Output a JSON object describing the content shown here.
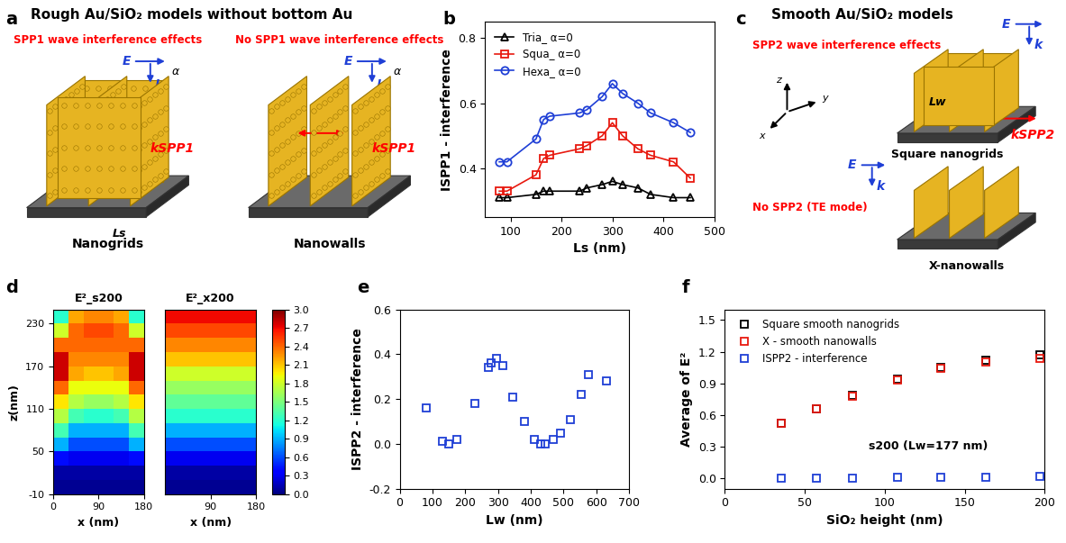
{
  "chart_data": [
    {
      "panel": "b",
      "type": "line",
      "xlabel": "Ls (nm)",
      "ylabel": "ISPP1 - interference",
      "x": [
        78,
        93,
        150,
        165,
        177,
        236,
        250,
        280,
        300,
        320,
        350,
        375,
        420,
        453
      ],
      "series": [
        {
          "name": "Tria_ α=0",
          "color": "#000000",
          "marker": "triangle",
          "line_style": "solid",
          "values": [
            0.31,
            0.31,
            0.32,
            0.33,
            0.33,
            0.33,
            0.34,
            0.35,
            0.36,
            0.35,
            0.34,
            0.32,
            0.31,
            0.31
          ]
        },
        {
          "name": "Squa_ α=0",
          "color": "#e8190f",
          "marker": "square",
          "line_style": "solid",
          "values": [
            0.33,
            0.33,
            0.38,
            0.43,
            0.44,
            0.46,
            0.47,
            0.5,
            0.54,
            0.5,
            0.46,
            0.44,
            0.42,
            0.37
          ]
        },
        {
          "name": "Hexa_ α=0",
          "color": "#1f3fd6",
          "marker": "circle",
          "line_style": "solid",
          "values": [
            0.42,
            0.42,
            0.49,
            0.55,
            0.56,
            0.57,
            0.58,
            0.62,
            0.66,
            0.63,
            0.6,
            0.57,
            0.54,
            0.51
          ]
        }
      ],
      "xlim": [
        50,
        500
      ],
      "xticks": [
        100,
        200,
        300,
        400,
        500
      ],
      "ylim": [
        0.25,
        0.85
      ],
      "yticks": [
        0.4,
        0.6,
        0.8
      ],
      "legend": "upper left"
    },
    {
      "panel": "d",
      "type": "heatmap",
      "xlabel": "x (nm)",
      "ylabel": "z(nm)",
      "xlim": [
        0,
        180
      ],
      "ylim": [
        -10,
        250
      ],
      "yticks": [
        -10,
        50,
        110,
        170,
        230
      ],
      "colorbar_range": [
        0.0,
        3.0
      ],
      "colorbar_ticks": [
        0.0,
        0.3,
        0.6,
        0.9,
        1.2,
        1.5,
        1.8,
        2.1,
        2.4,
        2.7,
        3.0
      ],
      "maps": [
        {
          "title": "E²_s200",
          "xticks": [
            0,
            90,
            180
          ],
          "x_edges": [
            0,
            30,
            60,
            90,
            120,
            150,
            180
          ],
          "z_edges": [
            -10,
            10,
            30,
            50,
            70,
            90,
            110,
            130,
            150,
            170,
            190,
            210,
            230,
            250
          ],
          "cells": [
            [
              0.05,
              0.05,
              0.05,
              0.05,
              0.05,
              0.05
            ],
            [
              0.1,
              0.1,
              0.1,
              0.1,
              0.1,
              0.1
            ],
            [
              0.4,
              0.3,
              0.3,
              0.3,
              0.3,
              0.4
            ],
            [
              0.9,
              0.6,
              0.6,
              0.6,
              0.6,
              0.9
            ],
            [
              1.3,
              0.9,
              0.9,
              0.9,
              0.9,
              1.3
            ],
            [
              1.7,
              1.3,
              1.2,
              1.2,
              1.3,
              1.7
            ],
            [
              2.0,
              1.7,
              1.6,
              1.6,
              1.7,
              2.0
            ],
            [
              2.4,
              1.9,
              1.9,
              1.9,
              1.9,
              2.4
            ],
            [
              2.8,
              2.2,
              2.1,
              2.1,
              2.2,
              2.8
            ],
            [
              2.8,
              2.3,
              2.3,
              2.3,
              2.3,
              2.8
            ],
            [
              2.4,
              2.4,
              2.4,
              2.4,
              2.4,
              2.4
            ],
            [
              1.8,
              2.4,
              2.5,
              2.5,
              2.4,
              1.8
            ],
            [
              1.2,
              2.2,
              2.3,
              2.3,
              2.2,
              1.2
            ]
          ]
        },
        {
          "title": "E²_x200",
          "xticks": [
            90,
            180
          ],
          "x_edges": [
            0,
            30,
            60,
            90,
            120,
            150,
            180
          ],
          "z_edges": [
            -10,
            10,
            30,
            50,
            70,
            90,
            110,
            130,
            150,
            170,
            190,
            210,
            230,
            250
          ],
          "cells": [
            [
              0.05,
              0.05,
              0.05,
              0.05,
              0.05,
              0.05
            ],
            [
              0.1,
              0.1,
              0.1,
              0.1,
              0.1,
              0.1
            ],
            [
              0.3,
              0.3,
              0.3,
              0.3,
              0.3,
              0.3
            ],
            [
              0.6,
              0.6,
              0.6,
              0.6,
              0.6,
              0.6
            ],
            [
              0.9,
              0.9,
              0.9,
              0.9,
              0.9,
              0.9
            ],
            [
              1.2,
              1.2,
              1.2,
              1.2,
              1.2,
              1.2
            ],
            [
              1.4,
              1.4,
              1.4,
              1.4,
              1.4,
              1.4
            ],
            [
              1.6,
              1.6,
              1.6,
              1.6,
              1.6,
              1.6
            ],
            [
              1.8,
              1.8,
              1.8,
              1.8,
              1.8,
              1.8
            ],
            [
              2.1,
              2.1,
              2.1,
              2.1,
              2.1,
              2.1
            ],
            [
              2.3,
              2.3,
              2.3,
              2.3,
              2.3,
              2.3
            ],
            [
              2.5,
              2.5,
              2.5,
              2.5,
              2.5,
              2.5
            ],
            [
              2.7,
              2.7,
              2.7,
              2.7,
              2.7,
              2.7
            ]
          ]
        }
      ]
    },
    {
      "panel": "e",
      "type": "scatter",
      "xlabel": "Lw (nm)",
      "ylabel": "ISPP2 - interference",
      "x": [
        80,
        130,
        150,
        175,
        230,
        270,
        280,
        295,
        315,
        345,
        380,
        410,
        430,
        445,
        470,
        490,
        520,
        555,
        575,
        630
      ],
      "series": [
        {
          "color": "#1f3fd6",
          "marker": "square",
          "line_style": "none",
          "values": [
            0.16,
            0.01,
            0.0,
            0.02,
            0.18,
            0.34,
            0.36,
            0.38,
            0.35,
            0.21,
            0.1,
            0.02,
            0.0,
            0.0,
            0.02,
            0.05,
            0.11,
            0.22,
            0.31,
            0.28
          ]
        }
      ],
      "xlim": [
        0,
        700
      ],
      "xticks": [
        0,
        100,
        200,
        300,
        400,
        500,
        600,
        700
      ],
      "ylim": [
        -0.2,
        0.6
      ],
      "yticks": [
        -0.2,
        0.0,
        0.2,
        0.4,
        0.6
      ]
    },
    {
      "panel": "f",
      "type": "scatter",
      "xlabel": "SiO₂ height (nm)",
      "ylabel": "Average of E²",
      "x": [
        35,
        57,
        80,
        108,
        135,
        163,
        197
      ],
      "series": [
        {
          "name": "Square smooth nanogrids",
          "color": "#000000",
          "marker": "square",
          "line_style": "none",
          "values": [
            0.52,
            0.66,
            0.79,
            0.94,
            1.05,
            1.12,
            1.17
          ]
        },
        {
          "name": "X - smooth nanowalls",
          "color": "#e8190f",
          "marker": "square",
          "line_style": "none",
          "values": [
            0.52,
            0.66,
            0.78,
            0.93,
            1.04,
            1.1,
            1.14
          ]
        },
        {
          "name": "ISPP2 - interference",
          "color": "#1f3fd6",
          "marker": "square",
          "line_style": "none",
          "values": [
            0.0,
            0.0,
            0.0,
            0.01,
            0.01,
            0.01,
            0.02
          ]
        }
      ],
      "xlim": [
        0,
        200
      ],
      "xticks": [
        0,
        50,
        100,
        150,
        200
      ],
      "ylim": [
        -0.1,
        1.6
      ],
      "yticks": [
        0.0,
        0.3,
        0.6,
        0.9,
        1.2,
        1.5
      ],
      "legend": "upper left",
      "annotations": [
        "s200 (Lw=177 nm)"
      ]
    }
  ],
  "diagrams": {
    "a": {
      "panel": "a",
      "title": "Rough Au/SiO₂ models without bottom Au",
      "scenes": [
        {
          "effect": "SPP1 wave interference effects",
          "name": "Nanogrids",
          "kind": "grid"
        },
        {
          "effect": "No SPP1 wave interference effects",
          "name": "Nanowalls",
          "kind": "walls"
        }
      ],
      "E": "E",
      "k": "k",
      "angle": "α",
      "k_spp": "kSPP1",
      "spacing": "Ls"
    },
    "c": {
      "panel": "c",
      "title": "Smooth Au/SiO₂ models",
      "scenes": [
        {
          "effect": "SPP2 wave interference effects",
          "name": "Square nanogrids",
          "kind": "grid"
        },
        {
          "effect": "No SPP2 (TE mode)",
          "name": "X-nanowalls",
          "kind": "walls"
        }
      ],
      "E": "E",
      "k": "k",
      "k_spp": "kSPP2",
      "spacing": "Lw",
      "axes": [
        "x",
        "y",
        "z"
      ]
    }
  }
}
